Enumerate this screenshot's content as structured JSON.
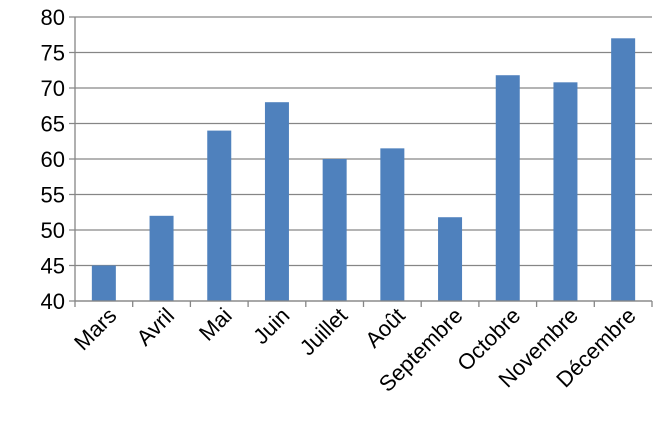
{
  "chart_data": {
    "type": "bar",
    "title": "",
    "xlabel": "",
    "ylabel": "",
    "categories": [
      "Mars",
      "Avril",
      "Mai",
      "Juin",
      "Juillet",
      "Août",
      "Septembre",
      "Octobre",
      "Novembre",
      "Décembre"
    ],
    "values": [
      45,
      52,
      64,
      68,
      60,
      61.5,
      51.8,
      71.8,
      70.8,
      77
    ],
    "ylim": [
      40,
      80
    ],
    "yticks": [
      40,
      45,
      50,
      55,
      60,
      65,
      70,
      75,
      80
    ],
    "grid": true,
    "legend": "none",
    "colors": {
      "bar": "#4f81bd",
      "grid": "#868686",
      "axis": "#868686"
    }
  }
}
